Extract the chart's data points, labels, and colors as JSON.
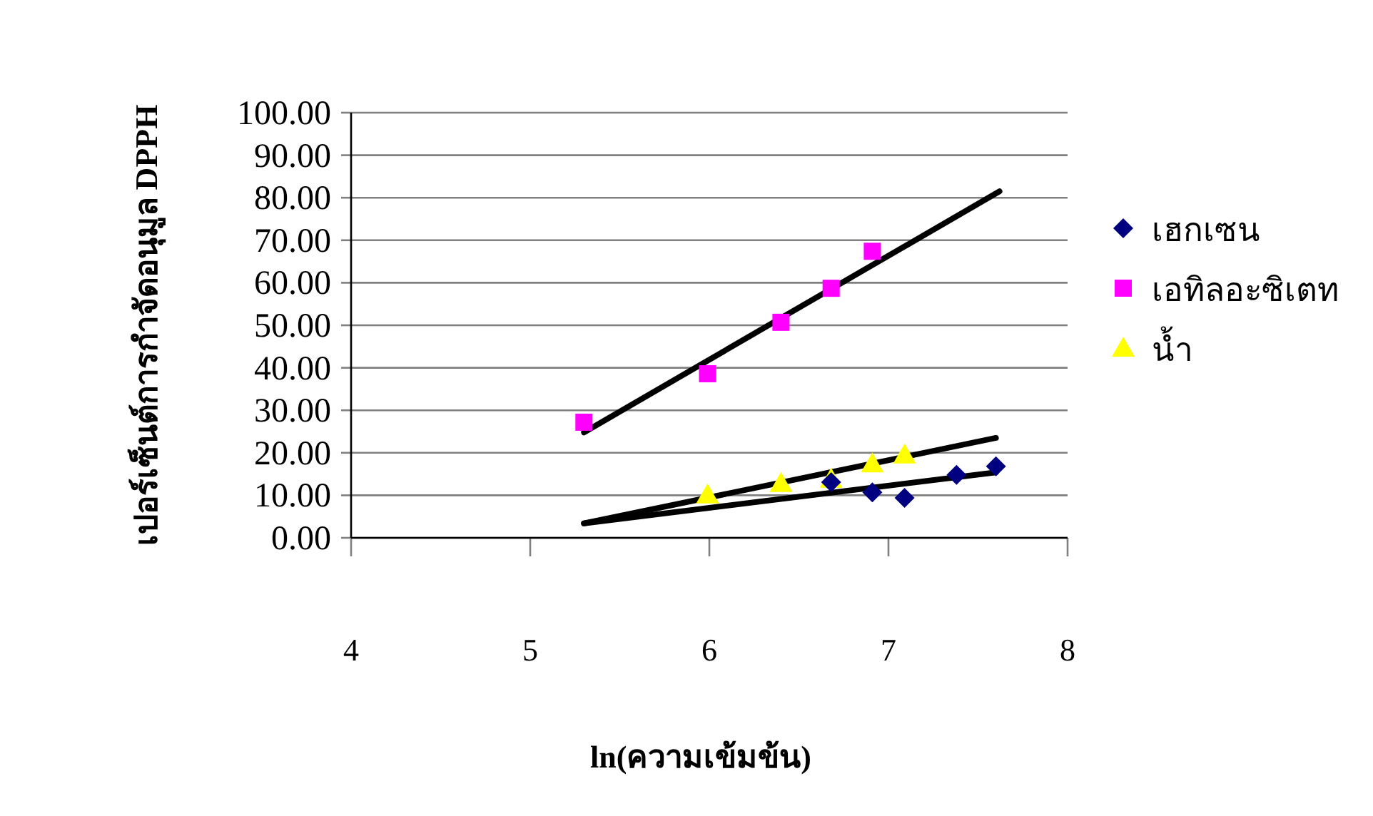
{
  "chart_data": {
    "type": "scatter",
    "xlabel": "ln(ความเข้มข้น)",
    "ylabel": "เปอร์เซ็นต์การกำจัดอนุมูล DPPH",
    "xlim": [
      4,
      8
    ],
    "ylim": [
      0,
      100
    ],
    "xticks": [
      4,
      5,
      6,
      7,
      8
    ],
    "yticks": [
      {
        "value": 0,
        "label": "0.00"
      },
      {
        "value": 10,
        "label": "10.00"
      },
      {
        "value": 20,
        "label": "20.00"
      },
      {
        "value": 30,
        "label": "30.00"
      },
      {
        "value": 40,
        "label": "40.00"
      },
      {
        "value": 50,
        "label": "50.00"
      },
      {
        "value": 60,
        "label": "60.00"
      },
      {
        "value": 70,
        "label": "70.00"
      },
      {
        "value": 80,
        "label": "80.00"
      },
      {
        "value": 90,
        "label": "90.00"
      },
      {
        "value": 100,
        "label": "100.00"
      }
    ],
    "grid": "y",
    "legend": "right",
    "series": [
      {
        "name": "เฮกเซน",
        "color": "#000080",
        "marker": "diamond",
        "x": [
          6.68,
          6.91,
          7.09,
          7.38,
          7.6
        ],
        "values": [
          13.1,
          10.7,
          9.4,
          14.8,
          16.8
        ]
      },
      {
        "name": "เอทิลอะซิเตท",
        "color": "#ff00ff",
        "marker": "square",
        "x": [
          5.3,
          5.99,
          6.4,
          6.68,
          6.91
        ],
        "values": [
          27.2,
          38.6,
          50.7,
          58.7,
          67.4
        ]
      },
      {
        "name": "น้ำ",
        "color": "#ffff00",
        "marker": "triangle",
        "x": [
          5.99,
          6.4,
          6.68,
          6.91,
          7.09
        ],
        "values": [
          10.1,
          12.8,
          13.8,
          17.4,
          19.5
        ]
      },
      {
        "type": "line",
        "color": "#000000",
        "marker": "none",
        "x": [
          5.3,
          7.6
        ],
        "values": [
          3.4,
          15.4
        ]
      },
      {
        "type": "line",
        "color": "#000000",
        "marker": "none",
        "x": [
          5.3,
          7.62
        ],
        "values": [
          24.8,
          81.5
        ]
      },
      {
        "type": "line",
        "color": "#000000",
        "marker": "none",
        "x": [
          5.3,
          7.6
        ],
        "values": [
          3.4,
          23.5
        ]
      }
    ]
  }
}
